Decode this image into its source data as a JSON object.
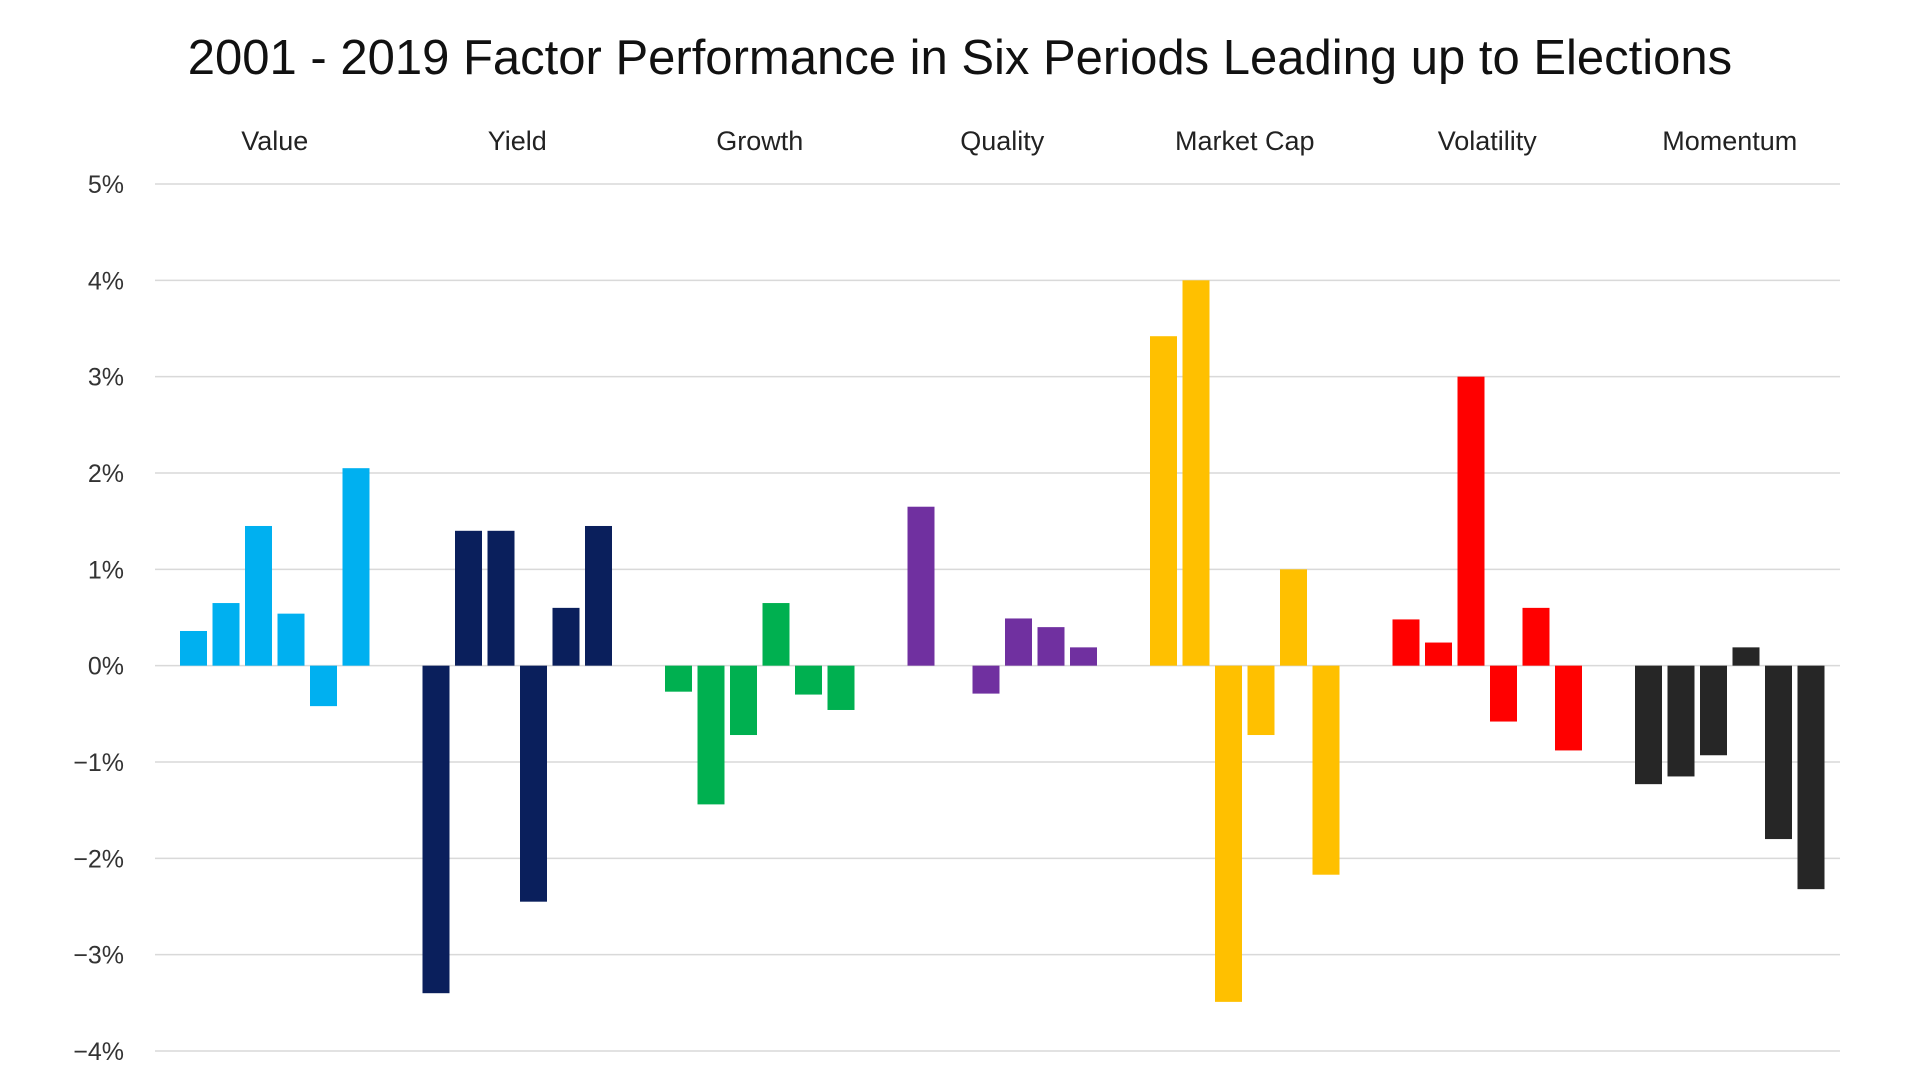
{
  "chart_data": {
    "type": "bar",
    "title": "2001 - 2019 Factor Performance in Six Periods Leading up to Elections",
    "xlabel": "",
    "ylabel": "",
    "ylim": [
      -4,
      5
    ],
    "y_ticks": [
      5,
      4,
      3,
      2,
      1,
      0,
      -1,
      -2,
      -3,
      -4
    ],
    "y_tick_labels": [
      "5%",
      "4%",
      "3%",
      "2%",
      "1%",
      "0%",
      "−1%",
      "−2%",
      "−3%",
      "−4%"
    ],
    "grid": "horizontal",
    "legend": "none",
    "groups": [
      {
        "name": "Value",
        "color": "#00B0F0",
        "values": [
          0.36,
          0.65,
          1.45,
          0.54,
          -0.42,
          2.05
        ]
      },
      {
        "name": "Yield",
        "color": "#0A1F5C",
        "values": [
          -3.4,
          1.4,
          1.4,
          -2.45,
          0.6,
          1.45
        ]
      },
      {
        "name": "Growth",
        "color": "#00B050",
        "values": [
          -0.27,
          -1.44,
          -0.72,
          0.65,
          -0.3,
          -0.46
        ]
      },
      {
        "name": "Quality",
        "color": "#7030A0",
        "values": [
          1.65,
          null,
          -0.29,
          0.49,
          0.4,
          0.19
        ]
      },
      {
        "name": "Market Cap",
        "color": "#FFC000",
        "values": [
          3.42,
          4.0,
          -3.49,
          -0.72,
          1.0,
          -2.17
        ]
      },
      {
        "name": "Volatility",
        "color": "#FF0000",
        "values": [
          0.48,
          0.24,
          3.0,
          -0.58,
          0.6,
          -0.88
        ]
      },
      {
        "name": "Momentum",
        "color": "#262626",
        "values": [
          -1.23,
          -1.15,
          -0.93,
          0.19,
          -1.8,
          -2.32
        ]
      }
    ]
  }
}
